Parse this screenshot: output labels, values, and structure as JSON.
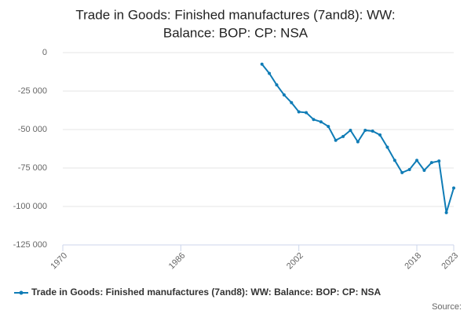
{
  "chart_data": {
    "type": "line",
    "title": [
      "Trade in Goods: Finished manufactures (7and8): WW:",
      "Balance: BOP: CP: NSA"
    ],
    "x": [
      1997,
      1998,
      1999,
      2000,
      2001,
      2002,
      2003,
      2004,
      2005,
      2006,
      2007,
      2008,
      2009,
      2010,
      2011,
      2012,
      2013,
      2014,
      2015,
      2016,
      2017,
      2018,
      2019,
      2020,
      2021,
      2022,
      2023
    ],
    "series": [
      {
        "name": "Trade in Goods: Finished manufactures (7and8): WW: Balance: BOP: CP: NSA",
        "color": "#0f7cb6",
        "values": [
          -7500,
          -13500,
          -21000,
          -27500,
          -32500,
          -38500,
          -39000,
          -43500,
          -45000,
          -48000,
          -57000,
          -54500,
          -50500,
          -58000,
          -50500,
          -51000,
          -53500,
          -61500,
          -70000,
          -78000,
          -76000,
          -70000,
          -76500,
          -71500,
          -70500,
          -104000,
          -88000
        ]
      }
    ],
    "xlim": [
      1970,
      2023
    ],
    "xticks": [
      1970,
      1986,
      2002,
      2018,
      2023
    ],
    "ylim": [
      -125000,
      0
    ],
    "yticks": [
      0,
      {
        "value": -25000,
        "label": "-25 000"
      },
      {
        "value": -50000,
        "label": "-50 000"
      },
      {
        "value": -75000,
        "label": "-75 000"
      },
      {
        "value": -100000,
        "label": "-100 000"
      },
      {
        "value": -125000,
        "label": "-125 000"
      }
    ],
    "grid": true,
    "legend": "bottom",
    "source": "Source:"
  }
}
